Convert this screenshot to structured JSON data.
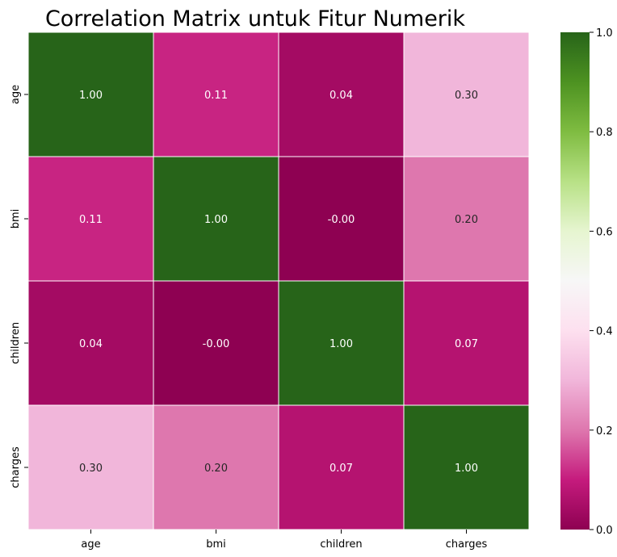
{
  "chart_data": {
    "type": "heatmap",
    "title": "Correlation Matrix untuk Fitur Numerik",
    "rows": [
      "age",
      "bmi",
      "children",
      "charges"
    ],
    "columns": [
      "age",
      "bmi",
      "children",
      "charges"
    ],
    "values": [
      [
        1.0,
        0.11,
        0.04,
        0.3
      ],
      [
        0.11,
        1.0,
        -0.0,
        0.2
      ],
      [
        0.04,
        -0.0,
        1.0,
        0.07
      ],
      [
        0.3,
        0.2,
        0.07,
        1.0
      ]
    ],
    "value_labels": [
      [
        "1.00",
        "0.11",
        "0.04",
        "0.30"
      ],
      [
        "0.11",
        "1.00",
        "-0.00",
        "0.20"
      ],
      [
        "0.04",
        "-0.00",
        "1.00",
        "0.07"
      ],
      [
        "0.30",
        "0.20",
        "0.07",
        "1.00"
      ]
    ],
    "colormap": "PiYG",
    "colormap_stops": [
      "#8e0152",
      "#c51b7d",
      "#de77ae",
      "#f1b6da",
      "#fde0ef",
      "#f7f7f7",
      "#e6f5d0",
      "#b8e186",
      "#7fbc41",
      "#4d9221",
      "#276419"
    ],
    "vmin": 0.0,
    "vmax": 1.0,
    "colorbar_ticks": [
      0.0,
      0.2,
      0.4,
      0.6,
      0.8,
      1.0
    ],
    "colorbar_tick_labels": [
      "0.0",
      "0.2",
      "0.4",
      "0.6",
      "0.8",
      "1.0"
    ],
    "cell_border_color": "#ffffff"
  }
}
